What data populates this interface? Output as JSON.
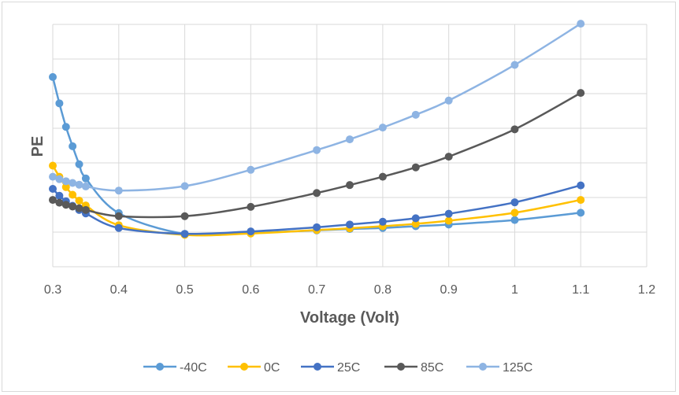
{
  "chart_data": {
    "type": "line",
    "title": "",
    "xlabel": "Voltage (Volt)",
    "ylabel": "PE",
    "xlim": [
      0.3,
      1.2
    ],
    "xticks": [
      "0.3",
      "0.4",
      "0.5",
      "0.6",
      "0.7",
      "0.8",
      "0.9",
      "1",
      "1.1",
      "1.2"
    ],
    "ylim": [
      0,
      7
    ],
    "y_tick_labels_shown": false,
    "grid": true,
    "legend_position": "bottom",
    "series": [
      {
        "name": "-40C",
        "color": "#5b9bd5",
        "x": [
          0.3,
          0.31,
          0.32,
          0.33,
          0.34,
          0.35,
          0.4,
          0.5,
          0.6,
          0.7,
          0.75,
          0.8,
          0.85,
          0.9,
          1.0,
          1.1
        ],
        "y": [
          5.48,
          4.72,
          4.04,
          3.48,
          2.96,
          2.55,
          1.55,
          0.95,
          0.98,
          1.05,
          1.09,
          1.12,
          1.17,
          1.22,
          1.35,
          1.56
        ]
      },
      {
        "name": "0C",
        "color": "#ffc000",
        "x": [
          0.3,
          0.31,
          0.32,
          0.33,
          0.34,
          0.35,
          0.4,
          0.5,
          0.6,
          0.7,
          0.75,
          0.8,
          0.85,
          0.9,
          1.0,
          1.1
        ],
        "y": [
          2.92,
          2.6,
          2.3,
          2.08,
          1.91,
          1.77,
          1.2,
          0.92,
          0.96,
          1.06,
          1.11,
          1.17,
          1.24,
          1.33,
          1.56,
          1.93
        ]
      },
      {
        "name": "25C",
        "color": "#4472c4",
        "x": [
          0.3,
          0.31,
          0.32,
          0.33,
          0.34,
          0.35,
          0.4,
          0.5,
          0.6,
          0.7,
          0.75,
          0.8,
          0.85,
          0.9,
          1.0,
          1.1
        ],
        "y": [
          2.25,
          2.05,
          1.89,
          1.76,
          1.64,
          1.54,
          1.12,
          0.95,
          1.02,
          1.14,
          1.22,
          1.3,
          1.4,
          1.53,
          1.86,
          2.35
        ]
      },
      {
        "name": "85C",
        "color": "#595959",
        "x": [
          0.3,
          0.31,
          0.32,
          0.33,
          0.34,
          0.35,
          0.4,
          0.5,
          0.6,
          0.7,
          0.75,
          0.8,
          0.85,
          0.9,
          1.0,
          1.1
        ],
        "y": [
          1.93,
          1.85,
          1.79,
          1.74,
          1.69,
          1.64,
          1.46,
          1.46,
          1.73,
          2.13,
          2.36,
          2.6,
          2.87,
          3.18,
          3.97,
          5.02
        ]
      },
      {
        "name": "125C",
        "color": "#8eb4e3",
        "x": [
          0.3,
          0.31,
          0.32,
          0.33,
          0.34,
          0.35,
          0.4,
          0.5,
          0.6,
          0.7,
          0.75,
          0.8,
          0.85,
          0.9,
          1.0,
          1.1
        ],
        "y": [
          2.6,
          2.53,
          2.47,
          2.42,
          2.37,
          2.32,
          2.2,
          2.33,
          2.8,
          3.37,
          3.68,
          4.02,
          4.39,
          4.8,
          5.83,
          7.02
        ]
      }
    ]
  }
}
